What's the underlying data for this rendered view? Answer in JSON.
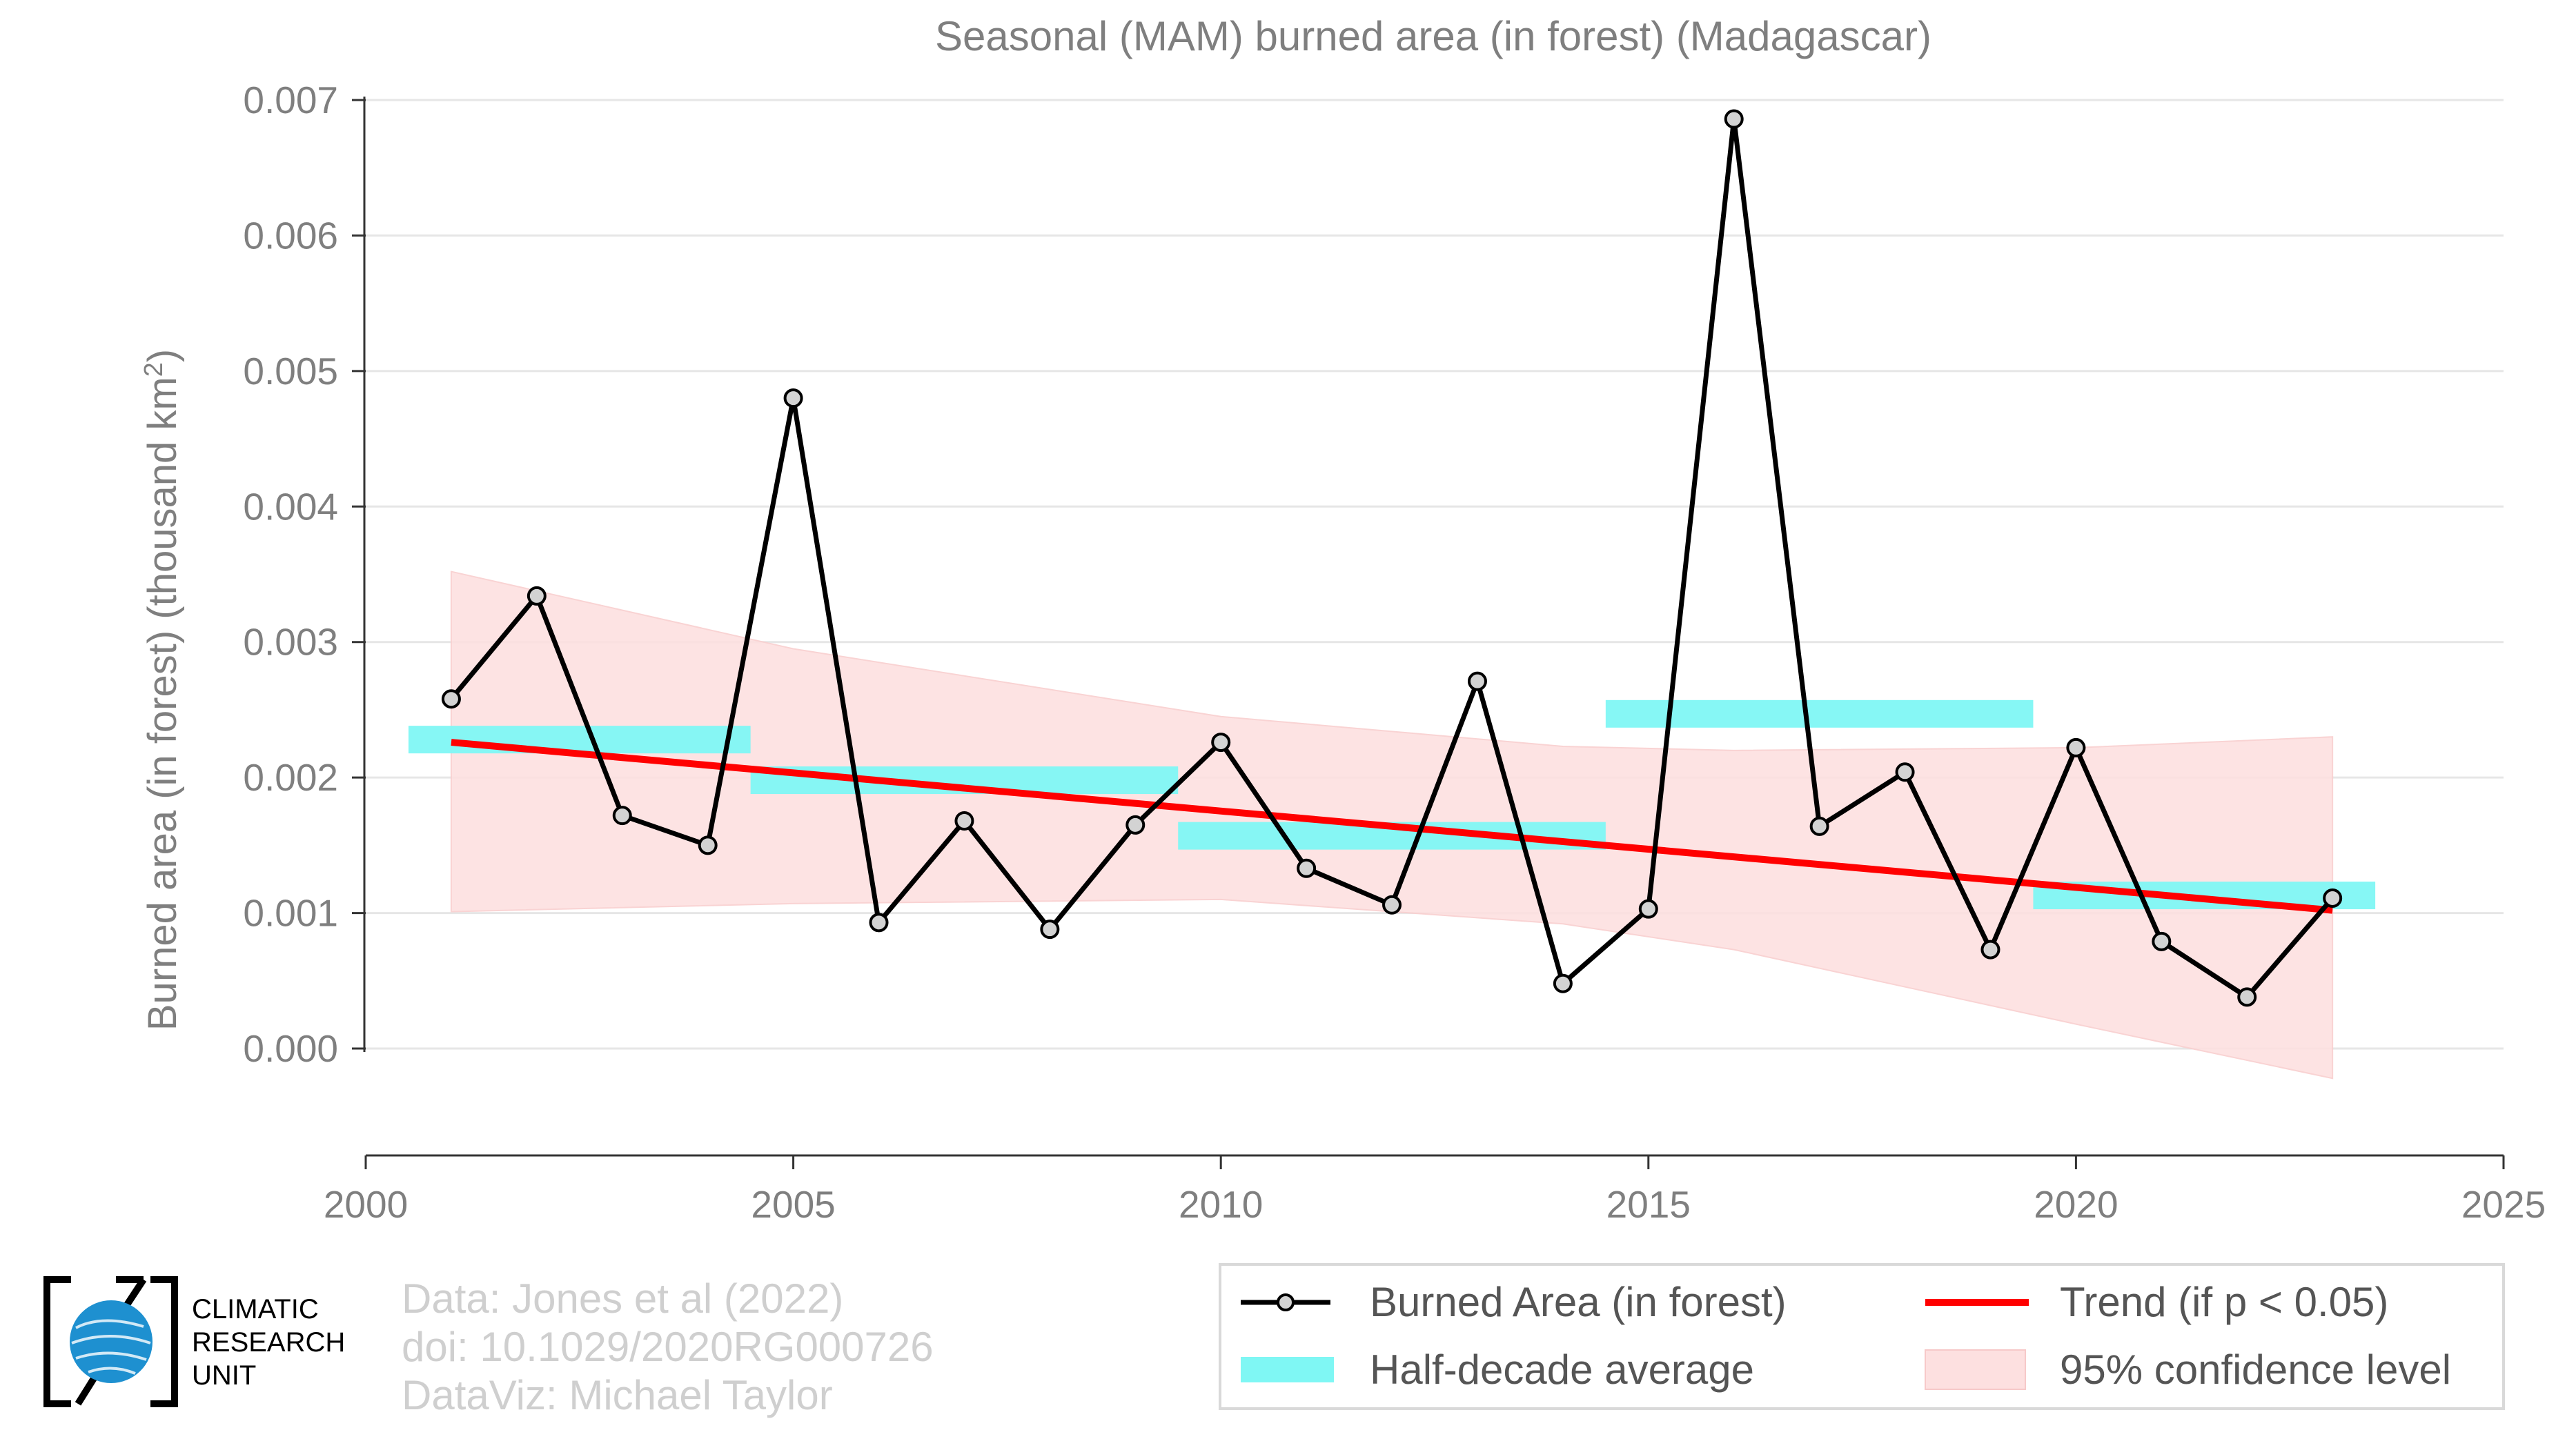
{
  "chart_data": {
    "type": "line",
    "title": "Seasonal (MAM) burned area (in forest) (Madagascar)",
    "ylabel": "Burned area (in forest) (thousand km",
    "ylabel_superscript": "2",
    "ylabel_close": ")",
    "xlim": [
      2000,
      2025
    ],
    "ylim": [
      0,
      0.007
    ],
    "x_ticks": [
      "2000",
      "2005",
      "2010",
      "2015",
      "2020",
      "2025"
    ],
    "y_ticks": [
      "0.000",
      "0.001",
      "0.002",
      "0.003",
      "0.004",
      "0.005",
      "0.006",
      "0.007"
    ],
    "grid": true,
    "legend_position": "bottom-right",
    "series": [
      {
        "name": "Burned Area (in forest)",
        "color": "#000000",
        "x": [
          2001,
          2002,
          2003,
          2004,
          2005,
          2006,
          2007,
          2008,
          2009,
          2010,
          2011,
          2012,
          2013,
          2014,
          2015,
          2016,
          2017,
          2018,
          2019,
          2020,
          2021,
          2022,
          2023
        ],
        "y": [
          0.00258,
          0.00334,
          0.00172,
          0.0015,
          0.0048,
          0.00093,
          0.00168,
          0.00088,
          0.00165,
          0.00226,
          0.00133,
          0.00106,
          0.00271,
          0.00048,
          0.00103,
          0.00686,
          0.00164,
          0.00204,
          0.00073,
          0.00222,
          0.00079,
          0.00038,
          0.00111
        ]
      }
    ],
    "half_decade_average": {
      "name": "Half-decade average",
      "color": "#7ff7f4",
      "segments": [
        {
          "x0": 2000.5,
          "x1": 2004.5,
          "y": 0.00228
        },
        {
          "x0": 2004.5,
          "x1": 2009.5,
          "y": 0.00198
        },
        {
          "x0": 2009.5,
          "x1": 2014.5,
          "y": 0.00157
        },
        {
          "x0": 2014.5,
          "x1": 2019.5,
          "y": 0.00247
        },
        {
          "x0": 2019.5,
          "x1": 2023.5,
          "y": 0.00113
        }
      ]
    },
    "trend": {
      "name": "Trend (if p < 0.05)",
      "color": "#ff0000",
      "x": [
        2001,
        2023
      ],
      "y": [
        0.00226,
        0.00102
      ]
    },
    "confidence_band": {
      "name": "95% confidence level",
      "color": "#fde0e0",
      "x": [
        2001,
        2005,
        2010,
        2014,
        2016,
        2020,
        2023
      ],
      "upper": [
        0.00352,
        0.00295,
        0.00245,
        0.00223,
        0.0022,
        0.00222,
        0.0023
      ],
      "lower": [
        0.00101,
        0.00107,
        0.0011,
        0.00092,
        0.00073,
        0.00018,
        -0.00022
      ]
    }
  },
  "credits": {
    "line1": "Data: Jones et al (2022)",
    "line2": "doi: 10.1029/2020RG000726",
    "line3": "DataViz: Michael Taylor"
  },
  "logo": {
    "line1": "CLIMATIC",
    "line2": "RESEARCH",
    "line3": "UNIT"
  }
}
